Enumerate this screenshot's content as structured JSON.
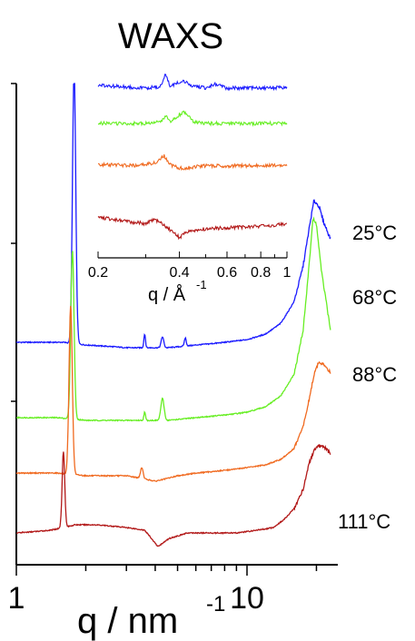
{
  "chart_data": [
    {
      "type": "line",
      "title": "WAXS",
      "xlabel_base": "q / nm",
      "xlabel_exp": "-1",
      "ylabel": "",
      "x_scale": "log",
      "xlim": [
        1,
        23
      ],
      "x_tick_labels": [
        "1",
        "10"
      ],
      "stacked_offsets": true,
      "y_units": "arbitrary (curves vertically offset)",
      "series": [
        {
          "name": "25°C",
          "color": "#1a1aff",
          "peaks": [
            {
              "q": 1.78,
              "height": 1.0,
              "width": 0.01
            },
            {
              "q": 3.6,
              "height": 0.05,
              "width": 0.005
            },
            {
              "q": 4.3,
              "height": 0.04,
              "width": 0.008
            },
            {
              "q": 5.4,
              "height": 0.03,
              "width": 0.006
            }
          ],
          "x": [
            1.0,
            1.6,
            2.0,
            3.0,
            4.5,
            6.0,
            8.0,
            10.0,
            12.0,
            14.0,
            16.0,
            17.5,
            18.7,
            19.5,
            20.5,
            21.5,
            23.0
          ],
          "y": [
            0.02,
            0.02,
            0.01,
            0.0,
            0.0,
            0.01,
            0.02,
            0.03,
            0.05,
            0.09,
            0.17,
            0.3,
            0.45,
            0.54,
            0.52,
            0.46,
            0.4
          ]
        },
        {
          "name": "68°C",
          "color": "#66ee22",
          "peaks": [
            {
              "q": 1.75,
              "height": 0.62,
              "width": 0.01
            },
            {
              "q": 3.6,
              "height": 0.03,
              "width": 0.005
            },
            {
              "q": 4.3,
              "height": 0.08,
              "width": 0.01
            }
          ],
          "x": [
            1.0,
            1.5,
            2.0,
            3.0,
            4.5,
            6.0,
            8.0,
            10.0,
            12.0,
            14.0,
            16.0,
            17.5,
            18.5,
            19.3,
            20.0,
            21.0,
            23.0
          ],
          "y": [
            0.01,
            0.01,
            0.0,
            0.0,
            0.0,
            0.01,
            0.02,
            0.03,
            0.05,
            0.09,
            0.17,
            0.33,
            0.55,
            0.74,
            0.72,
            0.55,
            0.33
          ]
        },
        {
          "name": "88°C",
          "color": "#f06a20",
          "peaks": [
            {
              "q": 1.72,
              "height": 0.62,
              "width": 0.01
            },
            {
              "q": 3.5,
              "height": 0.04,
              "width": 0.008
            }
          ],
          "x": [
            1.0,
            1.5,
            2.0,
            3.0,
            4.0,
            5.0,
            6.0,
            8.0,
            10.0,
            12.0,
            14.0,
            16.0,
            17.5,
            18.5,
            19.5,
            20.5,
            22.0,
            23.0
          ],
          "y": [
            0.01,
            0.01,
            0.0,
            0.0,
            -0.02,
            0.0,
            0.01,
            0.02,
            0.03,
            0.04,
            0.06,
            0.1,
            0.18,
            0.27,
            0.37,
            0.42,
            0.4,
            0.38
          ]
        },
        {
          "name": "111°C",
          "color": "#b21818",
          "peaks": [
            {
              "q": 1.6,
              "height": 0.28,
              "width": 0.008
            }
          ],
          "x": [
            1.0,
            1.4,
            1.8,
            2.2,
            3.0,
            3.6,
            4.1,
            4.6,
            5.5,
            7.0,
            9.0,
            11.0,
            13.0,
            14.5,
            16.0,
            17.5,
            18.5,
            19.5,
            20.5,
            22.0,
            23.0
          ],
          "y": [
            0.0,
            0.01,
            0.03,
            0.03,
            0.02,
            0.01,
            -0.05,
            -0.02,
            0.0,
            0.0,
            0.0,
            0.01,
            0.02,
            0.05,
            0.09,
            0.16,
            0.25,
            0.3,
            0.32,
            0.31,
            0.29
          ]
        }
      ]
    },
    {
      "type": "line",
      "role": "inset",
      "xlabel_base": "q / Å",
      "xlabel_exp": "-1",
      "x_scale": "log",
      "xlim": [
        0.2,
        1
      ],
      "x_tick_labels": [
        "0.2",
        "0.4",
        "0.6",
        "0.8",
        "1"
      ],
      "x_tick_values": [
        0.2,
        0.4,
        0.6,
        0.8,
        1.0
      ],
      "stacked_offsets": true,
      "series": [
        {
          "name": "25°C",
          "color": "#1a1aff",
          "x": [
            0.2,
            0.3,
            0.34,
            0.355,
            0.37,
            0.41,
            0.44,
            0.5,
            0.54,
            0.6,
            0.8,
            1.0
          ],
          "y": [
            0.1,
            0.0,
            0.05,
            0.55,
            0.05,
            0.3,
            0.1,
            0.0,
            0.15,
            0.0,
            0.0,
            0.02
          ]
        },
        {
          "name": "68°C",
          "color": "#66ee22",
          "x": [
            0.2,
            0.3,
            0.34,
            0.355,
            0.37,
            0.4,
            0.42,
            0.45,
            0.5,
            0.6,
            0.8,
            1.0
          ],
          "y": [
            0.0,
            0.0,
            0.05,
            0.3,
            0.05,
            0.35,
            0.45,
            0.05,
            0.0,
            0.0,
            0.0,
            0.0
          ]
        },
        {
          "name": "88°C",
          "color": "#f06a20",
          "x": [
            0.2,
            0.28,
            0.33,
            0.35,
            0.37,
            0.4,
            0.45,
            0.5,
            0.6,
            0.8,
            1.0
          ],
          "y": [
            0.1,
            0.05,
            0.2,
            0.45,
            0.1,
            -0.05,
            0.0,
            0.05,
            0.05,
            0.05,
            0.1
          ]
        },
        {
          "name": "111°C",
          "color": "#b21818",
          "x": [
            0.2,
            0.25,
            0.3,
            0.32,
            0.34,
            0.37,
            0.4,
            0.43,
            0.5,
            0.6,
            0.8,
            1.0
          ],
          "y": [
            0.45,
            0.3,
            0.2,
            0.35,
            0.25,
            -0.05,
            -0.35,
            -0.1,
            0.0,
            0.05,
            0.1,
            0.2
          ]
        }
      ]
    }
  ]
}
